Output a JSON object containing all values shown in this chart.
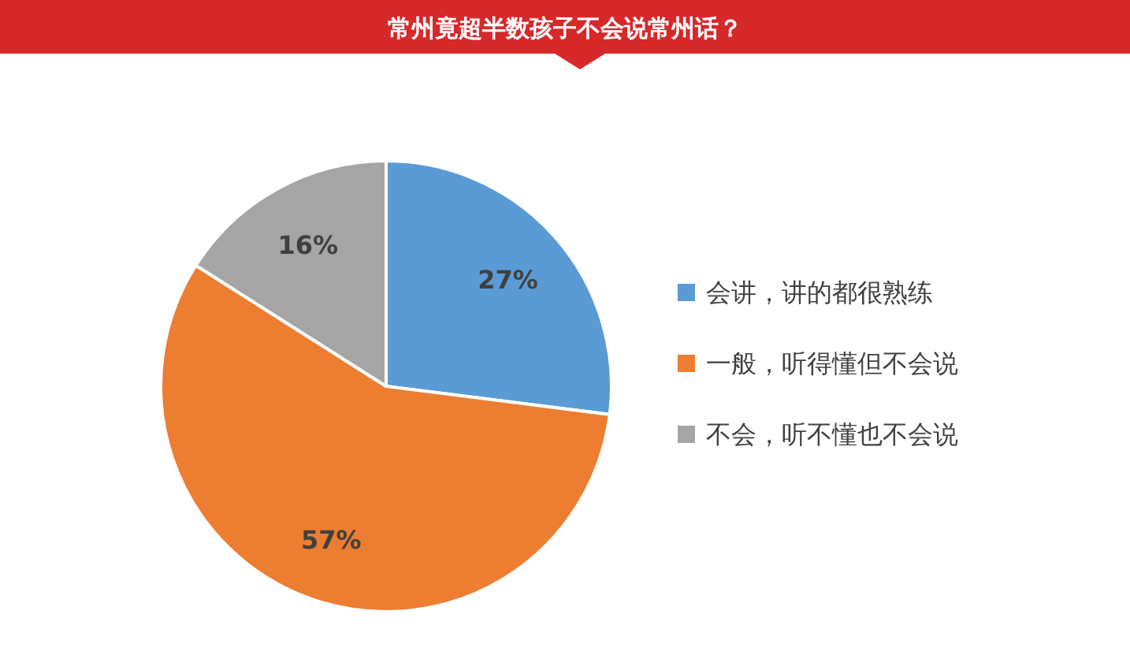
{
  "chart_data": {
    "type": "pie",
    "title": "常州竟超半数孩子不会说常州话？",
    "categories": [
      "会讲，讲的都很熟练",
      "一般，听得懂但不会说",
      "不会，听不懂也不会说"
    ],
    "values": [
      27,
      57,
      16
    ],
    "colors": [
      "#5b9bd5",
      "#ed7d31",
      "#a5a5a5"
    ],
    "value_labels": [
      "27%",
      "57%",
      "16%"
    ],
    "legend": "right"
  }
}
